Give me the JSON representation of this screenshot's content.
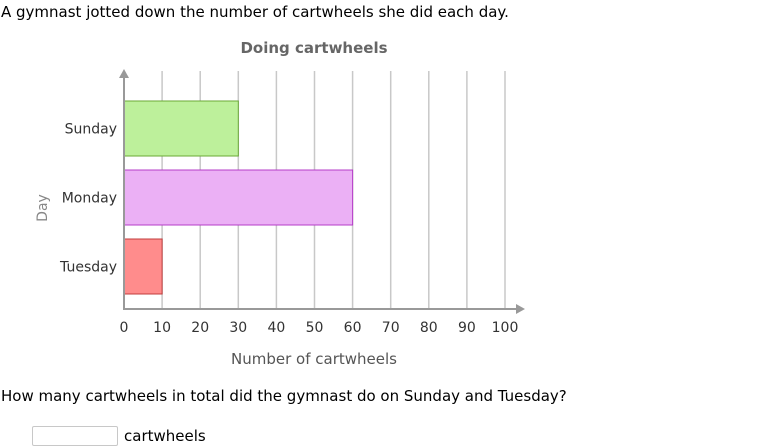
{
  "intro_text": "A gymnast jotted down the number of cartwheels she did each day.",
  "question_text": "How many cartwheels in total did the gymnast do on Sunday and Tuesday?",
  "answer": {
    "value": "",
    "placeholder": "",
    "unit": "cartwheels"
  },
  "chart_data": {
    "type": "bar",
    "orientation": "horizontal",
    "title": "Doing cartwheels",
    "xlabel": "Number of cartwheels",
    "ylabel": "Day",
    "categories": [
      "Sunday",
      "Monday",
      "Tuesday"
    ],
    "values": [
      30,
      60,
      10
    ],
    "colors": [
      "#bdf09b",
      "#ebb0f5",
      "#ff8c8c"
    ],
    "stroke_colors": [
      "#6aaa36",
      "#b43cc8",
      "#c03c3c"
    ],
    "xlim": [
      0,
      100
    ],
    "xticks": [
      0,
      10,
      20,
      30,
      40,
      50,
      60,
      70,
      80,
      90,
      100
    ],
    "grid": true
  }
}
